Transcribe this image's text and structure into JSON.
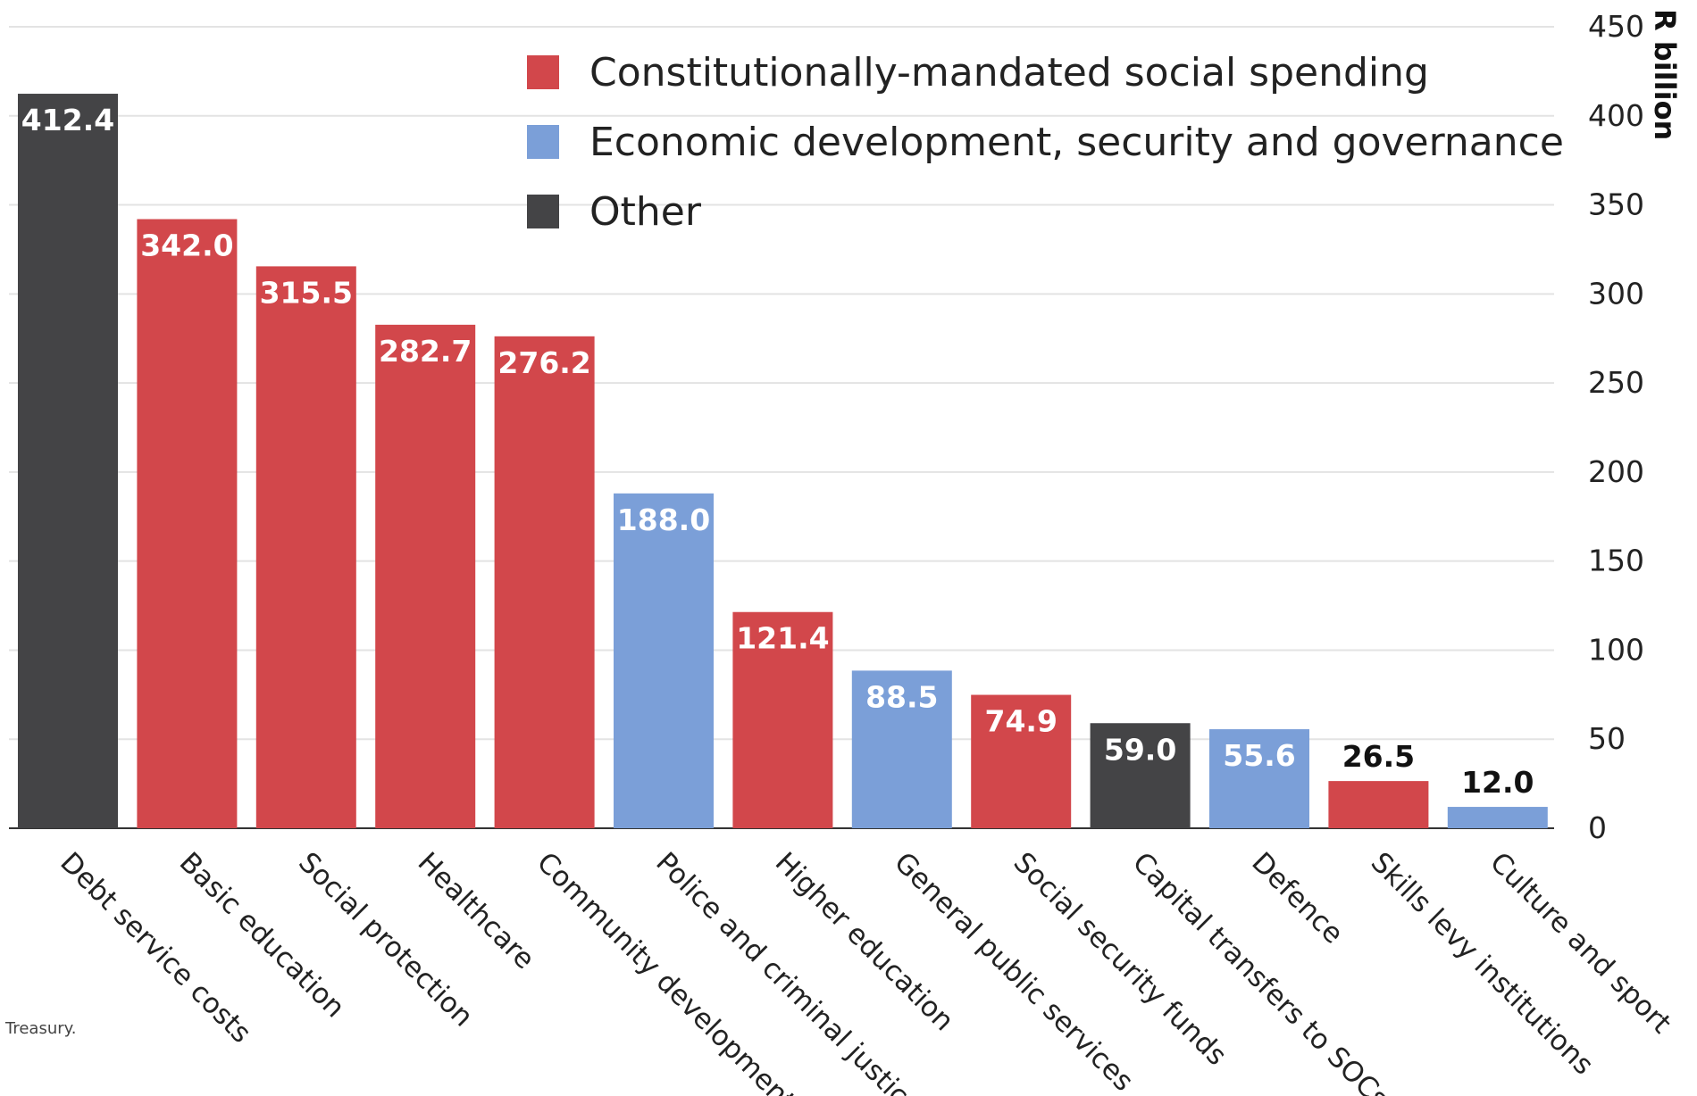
{
  "chart_data": {
    "type": "bar",
    "title": "",
    "xlabel": "",
    "ylabel": "R billion",
    "ylim": [
      0,
      450
    ],
    "yticks": [
      0,
      50,
      100,
      150,
      200,
      250,
      300,
      350,
      400,
      450
    ],
    "y_axis_side": "right",
    "grid": true,
    "legend_position": "top-center",
    "categories": [
      "Debt service costs",
      "Basic education",
      "Social protection",
      "Healthcare",
      "Community development",
      "Police and criminal justice",
      "Higher education",
      "General public services",
      "Social security funds",
      "Capital transfers to SOCs",
      "Defence",
      "Skills levy institutions",
      "Culture and sport"
    ],
    "values": [
      412.4,
      342.0,
      315.5,
      282.7,
      276.2,
      188.0,
      121.4,
      88.5,
      74.9,
      59.0,
      55.6,
      26.5,
      12.0
    ],
    "value_labels": [
      "412.4",
      "342.0",
      "315.5",
      "282.7",
      "276.2",
      "188.0",
      "121.4",
      "88.5",
      "74.9",
      "59.0",
      "55.6",
      "26.5",
      "12.0"
    ],
    "bar_groups": [
      "Other",
      "Constitutionally-mandated social spending",
      "Constitutionally-mandated social spending",
      "Constitutionally-mandated social spending",
      "Constitutionally-mandated social spending",
      "Economic development, security and governance",
      "Constitutionally-mandated social spending",
      "Economic development, security and governance",
      "Constitutionally-mandated social spending",
      "Other",
      "Economic development, security and governance",
      "Constitutionally-mandated social spending",
      "Economic development, security and governance"
    ],
    "legend": [
      {
        "name": "Constitutionally-mandated social spending",
        "color": "#d2474b"
      },
      {
        "name": "Economic development, security and governance",
        "color": "#7b9fd8"
      },
      {
        "name": "Other",
        "color": "#444446"
      }
    ],
    "source_fragment": "Treasury."
  }
}
